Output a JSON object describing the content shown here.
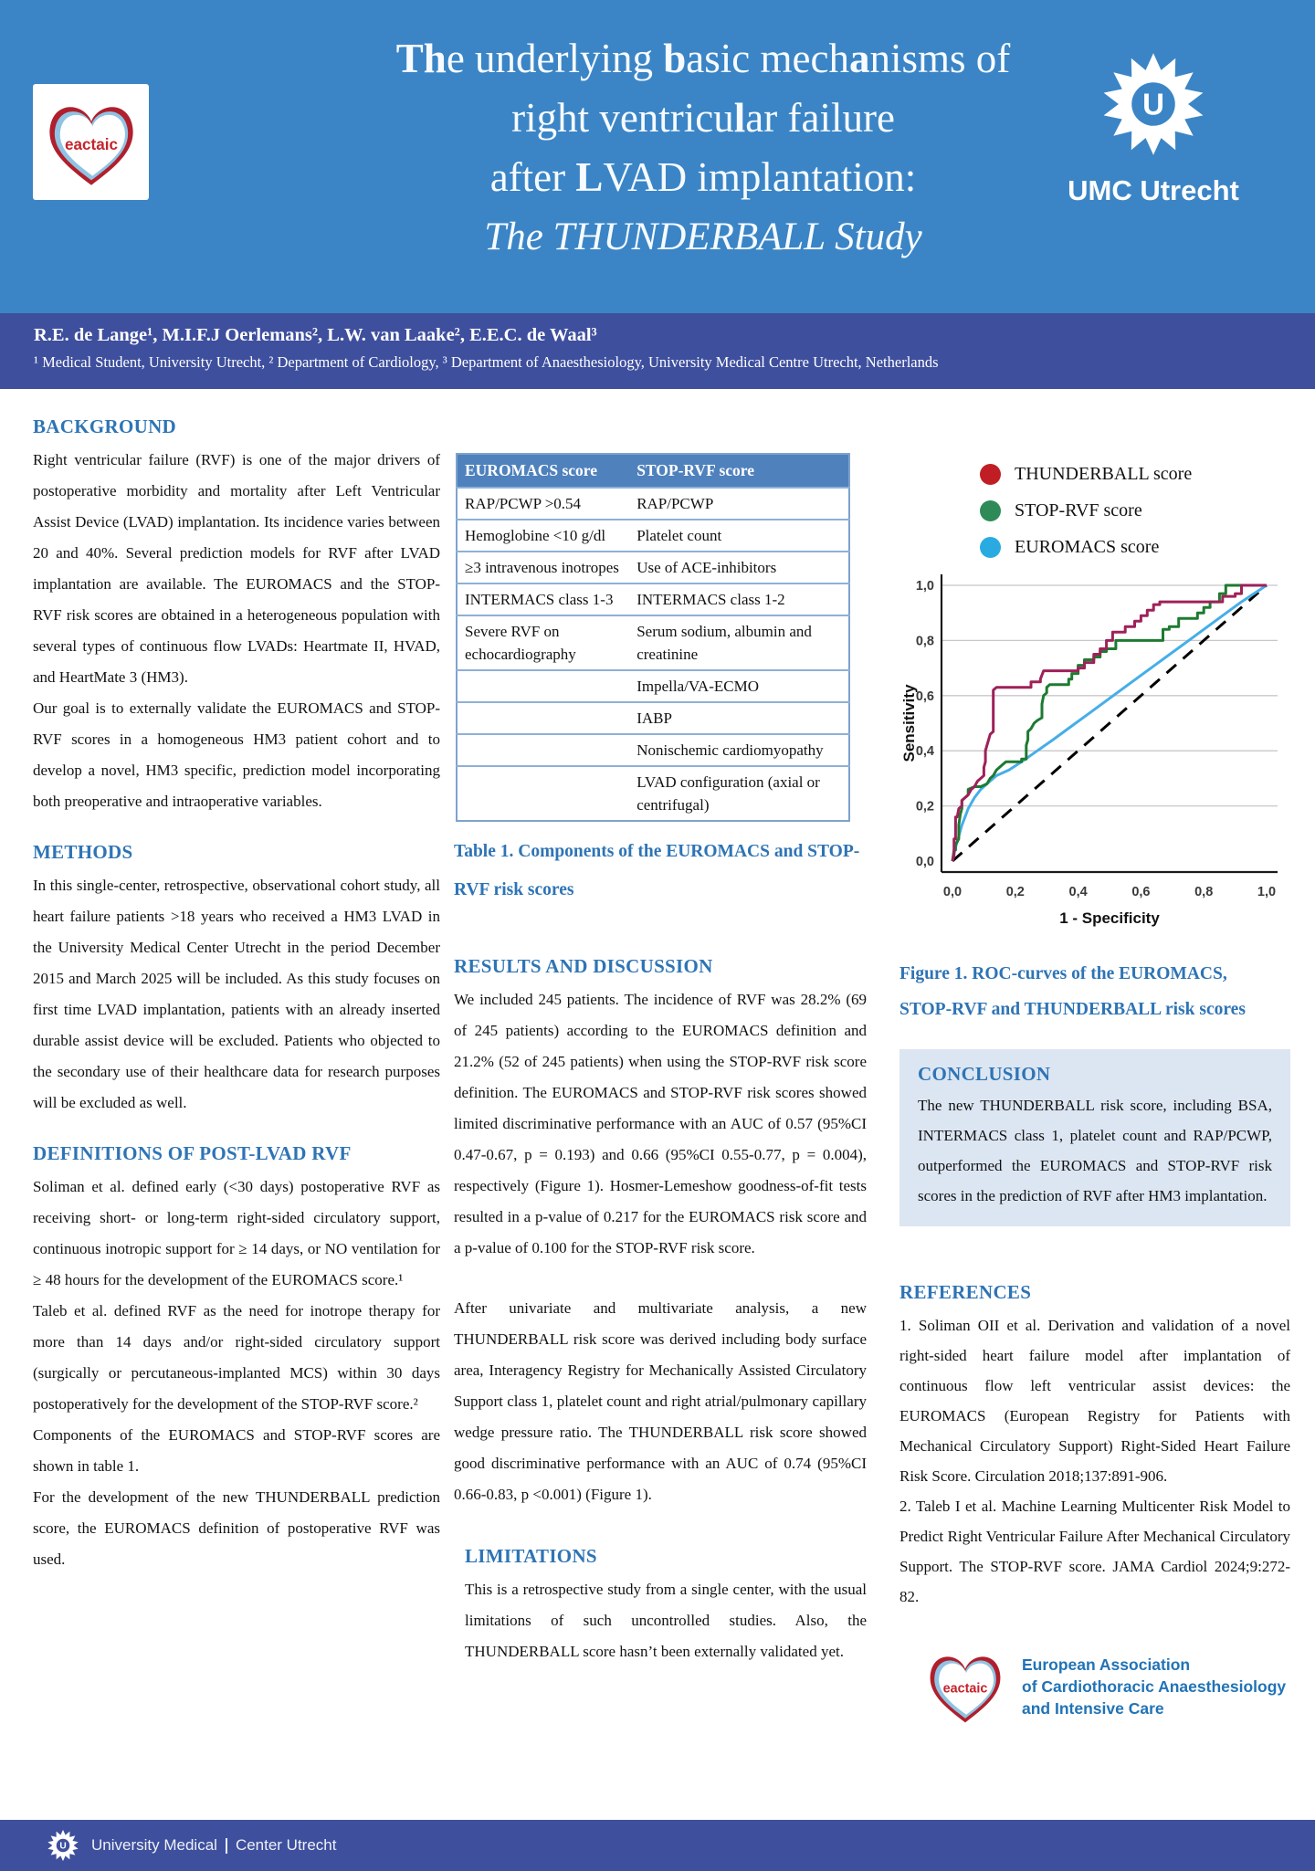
{
  "header": {
    "eactaic_logo_text": "eactaic",
    "umc_logo_text": "UMC Utrecht",
    "umc_initial": "U",
    "title_lines": [
      {
        "segments": [
          {
            "t": "Th",
            "b": true
          },
          {
            "t": "e underlying "
          },
          {
            "t": "b",
            "b": true
          },
          {
            "t": "asic mech"
          },
          {
            "t": "a",
            "b": true
          },
          {
            "t": "nisms of"
          }
        ]
      },
      {
        "segments": [
          {
            "t": "right ventricu"
          },
          {
            "t": "l",
            "b": true
          },
          {
            "t": "ar failure"
          }
        ]
      },
      {
        "segments": [
          {
            "t": "after "
          },
          {
            "t": "L",
            "b": true
          },
          {
            "t": "VAD implantation:"
          }
        ]
      },
      {
        "italic": true,
        "segments": [
          {
            "t": "The THUNDERBALL Study"
          }
        ]
      }
    ]
  },
  "authors": {
    "line": "R.E. de Lange¹, M.I.F.J Oerlemans², L.W. van Laake², E.E.C. de Waal³",
    "affiliations": "¹ Medical Student, University Utrecht, ² Department of Cardiology, ³ Department of Anaesthesiology, University Medical Centre Utrecht, Netherlands"
  },
  "sections": {
    "background": {
      "heading": "BACKGROUND",
      "paragraphs": [
        "Right ventricular failure (RVF) is one of the major drivers of postoperative morbidity and mortality after Left Ventricular Assist Device (LVAD) implantation. Its incidence varies between 20 and 40%. Several prediction models for RVF after LVAD implantation are available. The EUROMACS and the STOP-RVF risk scores are obtained in a heterogeneous population with several types of continuous flow LVADs: Heartmate II, HVAD, and HeartMate 3 (HM3).",
        "Our goal is to externally validate the EUROMACS and STOP-RVF scores in a homogeneous HM3 patient cohort and to develop a novel, HM3 specific, prediction model incorporating both preoperative and intraoperative variables."
      ]
    },
    "methods": {
      "heading": "METHODS",
      "paragraphs": [
        "In this single-center, retrospective, observational cohort study, all heart failure patients >18 years who received a HM3 LVAD in the University Medical Center Utrecht in the period December 2015 and March 2025 will be included. As this study focuses on first time LVAD implantation, patients with an already inserted durable assist device will be excluded. Patients who objected to the secondary use of their healthcare data for research purposes will be excluded as well."
      ]
    },
    "definitions": {
      "heading": "DEFINITIONS OF POST-LVAD RVF",
      "paragraphs": [
        "Soliman et al. defined early (<30 days) postoperative RVF as receiving short- or long-term right-sided circulatory support, continuous inotropic support for ≥ 14 days, or NO ventilation for ≥ 48 hours for the development of the EUROMACS score.¹",
        "Taleb et al. defined RVF as the need for inotrope therapy for more than 14 days and/or right-sided circulatory support (surgically or percutaneous-implanted MCS) within 30 days postoperatively for the development of the STOP-RVF score.²",
        "Components of the EUROMACS and STOP-RVF scores are shown in table 1.",
        "For the development of the new THUNDERBALL prediction score, the EUROMACS definition of postoperative RVF was used."
      ]
    },
    "results": {
      "heading": "RESULTS AND DISCUSSION",
      "paragraphs": [
        "We included 245 patients. The incidence of RVF was 28.2% (69 of 245 patients) according to the EUROMACS definition and 21.2% (52 of 245 patients) when using the STOP-RVF risk score definition. The EUROMACS and STOP-RVF risk scores showed limited discriminative performance with an AUC of 0.57 (95%CI 0.47-0.67, p = 0.193) and 0.66 (95%CI 0.55-0.77, p = 0.004), respectively (Figure 1). Hosmer-Lemeshow goodness-of-fit tests resulted in a p-value of 0.217 for the EUROMACS risk score and a p-value of 0.100 for the STOP-RVF risk score.",
        "After univariate and multivariate analysis, a new THUNDERBALL risk score was derived including body surface area, Interagency Registry for Mechanically Assisted Circulatory Support class 1, platelet count and right atrial/pulmonary capillary wedge pressure ratio. The THUNDERBALL risk score showed good discriminative performance with an AUC of 0.74 (95%CI 0.66-0.83, p <0.001) (Figure 1)."
      ]
    },
    "limitations": {
      "heading": "LIMITATIONS",
      "paragraphs": [
        "This is a retrospective study from a single center, with the usual limitations of such uncontrolled studies. Also, the THUNDERBALL score hasn’t been externally validated yet."
      ]
    },
    "conclusion": {
      "heading": "CONCLUSION",
      "paragraphs": [
        "The new THUNDERBALL risk score, including BSA, INTERMACS class 1, platelet count and RAP/PCWP, outperformed the EUROMACS and STOP-RVF risk scores in the prediction of RVF after HM3 implantation."
      ]
    },
    "references": {
      "heading": "REFERENCES",
      "items": [
        "1. Soliman OII et al. Derivation and validation of a novel right-sided heart failure model after implantation of continuous flow left ventricular assist devices: the EUROMACS (European Registry for Patients with Mechanical Circulatory Support) Right-Sided Heart Failure Risk Score. Circulation 2018;137:891-906.",
        "2. Taleb I et al. Machine Learning Multicenter Risk Model to Predict Right Ventricular Failure After Mechanical Circulatory Support. The STOP-RVF score. JAMA Cardiol 2024;9:272-82."
      ]
    }
  },
  "table": {
    "caption": "Table 1. Components of the EUROMACS and STOP-RVF risk scores",
    "headers": [
      "EUROMACS score",
      "STOP-RVF score"
    ],
    "rows": [
      [
        "RAP/PCWP >0.54",
        "RAP/PCWP"
      ],
      [
        "Hemoglobine <10 g/dl",
        "Platelet count"
      ],
      [
        "≥3 intravenous inotropes",
        "Use of ACE-inhibitors"
      ],
      [
        "INTERMACS class 1-3",
        "INTERMACS class 1-2"
      ],
      [
        "Severe RVF on echocardiography",
        "Serum sodium, albumin and creatinine"
      ],
      [
        "",
        "Impella/VA-ECMO"
      ],
      [
        "",
        "IABP"
      ],
      [
        "",
        "Nonischemic cardiomyopathy"
      ],
      [
        "",
        "LVAD configuration (axial or centrifugal)"
      ]
    ]
  },
  "figure": {
    "caption": "Figure 1. ROC-curves of the EUROMACS, STOP-RVF and THUNDERBALL risk scores"
  },
  "chart_data": {
    "type": "line",
    "title": "",
    "xlabel": "1 - Specificity",
    "ylabel": "Sensitivity",
    "xlim": [
      0,
      1
    ],
    "ylim": [
      0,
      1
    ],
    "grid": "horizontal",
    "reference_line": {
      "style": "dashed",
      "color": "#000000",
      "points": [
        [
          0,
          0
        ],
        [
          1,
          1
        ]
      ]
    },
    "x_ticks": {
      "values": [
        0,
        0.2,
        0.4,
        0.6,
        0.8,
        1.0
      ],
      "labels": [
        "0,0",
        "0,2",
        "0,4",
        "0,6",
        "0,8",
        "1,0"
      ]
    },
    "y_ticks": {
      "values": [
        0,
        0.2,
        0.4,
        0.6,
        0.8,
        1.0
      ],
      "labels": [
        "0,0",
        "0,2",
        "0,4",
        "0,6",
        "0,8",
        "1,0"
      ]
    },
    "legend_position": "top",
    "series": [
      {
        "name": "THUNDERBALL score",
        "color": "#9e2158",
        "legend_color": "#c01e24",
        "points": [
          [
            0,
            0
          ],
          [
            0.005,
            0.02
          ],
          [
            0.005,
            0.08
          ],
          [
            0.01,
            0.08
          ],
          [
            0.01,
            0.16
          ],
          [
            0.015,
            0.16
          ],
          [
            0.02,
            0.19
          ],
          [
            0.03,
            0.2
          ],
          [
            0.03,
            0.22
          ],
          [
            0.05,
            0.24
          ],
          [
            0.06,
            0.26
          ],
          [
            0.07,
            0.27
          ],
          [
            0.08,
            0.29
          ],
          [
            0.09,
            0.3
          ],
          [
            0.1,
            0.31
          ],
          [
            0.1,
            0.34
          ],
          [
            0.105,
            0.36
          ],
          [
            0.105,
            0.4
          ],
          [
            0.11,
            0.42
          ],
          [
            0.115,
            0.44
          ],
          [
            0.12,
            0.46
          ],
          [
            0.13,
            0.47
          ],
          [
            0.13,
            0.62
          ],
          [
            0.14,
            0.63
          ],
          [
            0.25,
            0.63
          ],
          [
            0.25,
            0.65
          ],
          [
            0.28,
            0.65
          ],
          [
            0.28,
            0.66
          ],
          [
            0.29,
            0.69
          ],
          [
            0.33,
            0.69
          ],
          [
            0.4,
            0.69
          ],
          [
            0.4,
            0.7
          ],
          [
            0.42,
            0.7
          ],
          [
            0.42,
            0.72
          ],
          [
            0.45,
            0.72
          ],
          [
            0.45,
            0.75
          ],
          [
            0.47,
            0.75
          ],
          [
            0.47,
            0.77
          ],
          [
            0.49,
            0.77
          ],
          [
            0.49,
            0.8
          ],
          [
            0.51,
            0.8
          ],
          [
            0.51,
            0.83
          ],
          [
            0.55,
            0.83
          ],
          [
            0.55,
            0.85
          ],
          [
            0.58,
            0.85
          ],
          [
            0.58,
            0.87
          ],
          [
            0.6,
            0.87
          ],
          [
            0.6,
            0.89
          ],
          [
            0.62,
            0.89
          ],
          [
            0.62,
            0.91
          ],
          [
            0.64,
            0.91
          ],
          [
            0.64,
            0.93
          ],
          [
            0.66,
            0.93
          ],
          [
            0.66,
            0.94
          ],
          [
            0.86,
            0.94
          ],
          [
            0.86,
            0.96
          ],
          [
            0.9,
            0.96
          ],
          [
            0.9,
            0.97
          ],
          [
            0.92,
            0.97
          ],
          [
            0.92,
            1
          ],
          [
            1,
            1
          ]
        ]
      },
      {
        "name": "STOP-RVF score",
        "color": "#1e7a30",
        "legend_color": "#2e8b57",
        "points": [
          [
            0,
            0
          ],
          [
            0.005,
            0.04
          ],
          [
            0.01,
            0.04
          ],
          [
            0.01,
            0.06
          ],
          [
            0.02,
            0.08
          ],
          [
            0.02,
            0.13
          ],
          [
            0.025,
            0.17
          ],
          [
            0.03,
            0.19
          ],
          [
            0.03,
            0.22
          ],
          [
            0.05,
            0.24
          ],
          [
            0.05,
            0.26
          ],
          [
            0.07,
            0.27
          ],
          [
            0.09,
            0.27
          ],
          [
            0.11,
            0.28
          ],
          [
            0.12,
            0.3
          ],
          [
            0.13,
            0.31
          ],
          [
            0.14,
            0.33
          ],
          [
            0.15,
            0.34
          ],
          [
            0.16,
            0.35
          ],
          [
            0.17,
            0.36
          ],
          [
            0.22,
            0.36
          ],
          [
            0.22,
            0.37
          ],
          [
            0.235,
            0.37
          ],
          [
            0.235,
            0.42
          ],
          [
            0.24,
            0.44
          ],
          [
            0.24,
            0.47
          ],
          [
            0.25,
            0.48
          ],
          [
            0.26,
            0.5
          ],
          [
            0.27,
            0.51
          ],
          [
            0.285,
            0.52
          ],
          [
            0.285,
            0.57
          ],
          [
            0.29,
            0.6
          ],
          [
            0.3,
            0.61
          ],
          [
            0.3,
            0.63
          ],
          [
            0.31,
            0.64
          ],
          [
            0.37,
            0.64
          ],
          [
            0.37,
            0.66
          ],
          [
            0.38,
            0.66
          ],
          [
            0.38,
            0.68
          ],
          [
            0.4,
            0.68
          ],
          [
            0.4,
            0.71
          ],
          [
            0.42,
            0.71
          ],
          [
            0.42,
            0.73
          ],
          [
            0.45,
            0.73
          ],
          [
            0.45,
            0.74
          ],
          [
            0.47,
            0.74
          ],
          [
            0.47,
            0.76
          ],
          [
            0.49,
            0.76
          ],
          [
            0.49,
            0.77
          ],
          [
            0.52,
            0.77
          ],
          [
            0.52,
            0.8
          ],
          [
            0.56,
            0.8
          ],
          [
            0.67,
            0.8
          ],
          [
            0.67,
            0.84
          ],
          [
            0.69,
            0.84
          ],
          [
            0.69,
            0.85
          ],
          [
            0.72,
            0.85
          ],
          [
            0.72,
            0.88
          ],
          [
            0.78,
            0.88
          ],
          [
            0.78,
            0.9
          ],
          [
            0.8,
            0.9
          ],
          [
            0.8,
            0.92
          ],
          [
            0.82,
            0.92
          ],
          [
            0.82,
            0.94
          ],
          [
            0.85,
            0.94
          ],
          [
            0.85,
            0.97
          ],
          [
            0.87,
            0.97
          ],
          [
            0.87,
            1
          ],
          [
            0.93,
            1
          ],
          [
            1,
            1
          ]
        ]
      },
      {
        "name": "EUROMACS score",
        "color": "#45aee8",
        "legend_color": "#29abe2",
        "points": [
          [
            0,
            0
          ],
          [
            0.01,
            0.05
          ],
          [
            0.02,
            0.09
          ],
          [
            0.03,
            0.13
          ],
          [
            0.04,
            0.16
          ],
          [
            0.05,
            0.19
          ],
          [
            0.07,
            0.23
          ],
          [
            0.09,
            0.26
          ],
          [
            0.11,
            0.28
          ],
          [
            0.14,
            0.31
          ],
          [
            0.18,
            0.33
          ],
          [
            0.22,
            0.36
          ],
          [
            0.27,
            0.4
          ],
          [
            0.32,
            0.44
          ],
          [
            0.38,
            0.49
          ],
          [
            0.44,
            0.54
          ],
          [
            0.5,
            0.59
          ],
          [
            0.56,
            0.64
          ],
          [
            0.62,
            0.69
          ],
          [
            0.68,
            0.74
          ],
          [
            0.74,
            0.79
          ],
          [
            0.8,
            0.84
          ],
          [
            0.86,
            0.89
          ],
          [
            0.92,
            0.94
          ],
          [
            1,
            1
          ]
        ]
      }
    ]
  },
  "eactaic_footer": {
    "logo_text": "eactaic",
    "lines": [
      "European Association",
      "of Cardiothoracic Anaesthesiology",
      "and Intensive Care"
    ]
  },
  "footer": {
    "text_left": "University Medical",
    "text_right": "Center Utrecht",
    "umc_initial": "U"
  },
  "colors": {
    "header_blue": "#3b85c6",
    "band_navy": "#3e4f9d",
    "heading_blue": "#2e74b5",
    "table_header_blue": "#4f81bd",
    "table_border_blue": "#7ea3cd",
    "conclusion_bg": "#dce6f2",
    "eactaic_red": "#c4232b",
    "assoc_text_blue": "#2173b6",
    "grid_gray": "#c8c8c8"
  }
}
